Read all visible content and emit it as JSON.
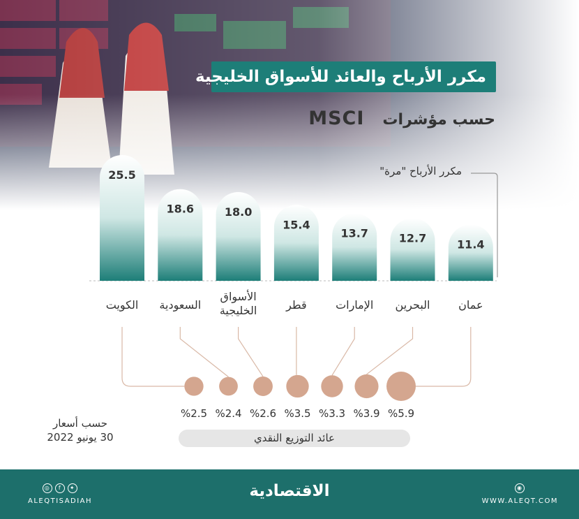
{
  "title": "مكرر الأرباح والعائد للأسواق الخليجية",
  "subtitle": "حسب مؤشرات",
  "subtitle_brand": "MSCI",
  "legend_label": "مكرر الأرباح \"مرة\"",
  "source": {
    "line1": "حسب أسعار",
    "line2": "30 يونيو 2022"
  },
  "dividend_label": "عائد التوزيع النقدي",
  "footer": {
    "brand": "الاقتصادية",
    "website": "WWW.ALEQT.COM",
    "handle": "ALEQTISADIAH"
  },
  "colors": {
    "teal": "#1d7e78",
    "bar_top": "#ffffff",
    "bubble": "#d4a68f",
    "connector": "#d9b8a6",
    "footer": "#1d6f6b"
  },
  "icons": [
    "instagram-icon",
    "facebook-icon",
    "twitter-icon",
    "web-icon"
  ],
  "chart_data": {
    "type": "bar",
    "categories": [
      "الكويت",
      "السعودية",
      "الأسواق الخليجية",
      "قطر",
      "الإمارات",
      "البحرين",
      "عمان"
    ],
    "series": [
      {
        "name": "مكرر الأرباح \"مرة\"",
        "values": [
          25.5,
          18.6,
          18.0,
          15.4,
          13.7,
          12.7,
          11.4
        ]
      },
      {
        "name": "عائد التوزيع النقدي",
        "values": [
          2.5,
          2.4,
          2.6,
          3.5,
          3.3,
          3.9,
          5.9
        ]
      }
    ],
    "value_labels": [
      "25.5",
      "18.6",
      "18.0",
      "15.4",
      "13.7",
      "12.7",
      "11.4"
    ],
    "yield_labels": [
      "%2.5",
      "%2.4",
      "%2.6",
      "%3.5",
      "%3.3",
      "%3.9",
      "%5.9"
    ],
    "ylim": [
      0,
      25.5
    ]
  }
}
